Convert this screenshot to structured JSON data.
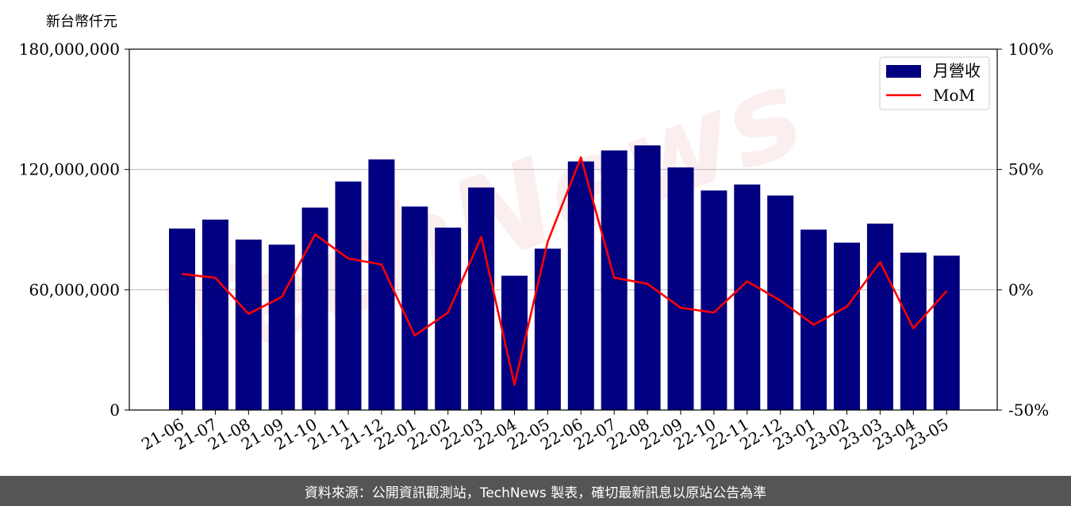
{
  "chart_data": {
    "type": "bar",
    "unit_label": "新台幣仟元",
    "categories": [
      "21-06",
      "21-07",
      "21-08",
      "21-09",
      "21-10",
      "21-11",
      "21-12",
      "22-01",
      "22-02",
      "22-03",
      "22-04",
      "22-05",
      "22-06",
      "22-07",
      "22-08",
      "22-09",
      "22-10",
      "22-11",
      "22-12",
      "23-01",
      "23-02",
      "23-03",
      "23-04",
      "23-05"
    ],
    "series": [
      {
        "name": "月營收",
        "kind": "bar",
        "axis": "left",
        "color": "#000080",
        "values": [
          90500000,
          95000000,
          85000000,
          82500000,
          101000000,
          114000000,
          125000000,
          101500000,
          91000000,
          111000000,
          67000000,
          80500000,
          124000000,
          129500000,
          132000000,
          121000000,
          109500000,
          112500000,
          107000000,
          90000000,
          83500000,
          93000000,
          78500000,
          77000000
        ]
      },
      {
        "name": "MoM",
        "kind": "line",
        "axis": "right",
        "color": "#ff0000",
        "values": [
          6.5,
          5,
          -10,
          -3,
          23,
          13,
          10.5,
          -19,
          -9.5,
          22,
          -39.5,
          20,
          55,
          5,
          2.5,
          -7.5,
          -9.5,
          3.5,
          -4.5,
          -14.5,
          -7,
          11.5,
          -16,
          -0.5
        ]
      }
    ],
    "y_left": {
      "range": [
        0,
        180000000
      ],
      "ticks": [
        "0",
        "60,000,000",
        "120,000,000",
        "180,000,000"
      ],
      "tick_values": [
        0,
        60000000,
        120000000,
        180000000
      ]
    },
    "y_right": {
      "range": [
        -50,
        100
      ],
      "ticks": [
        "-50%",
        "0%",
        "50%",
        "100%"
      ],
      "tick_values": [
        -50,
        0,
        50,
        100
      ]
    },
    "grid": true,
    "legend": "top-right"
  },
  "watermark": "TechNews",
  "footer": {
    "text": "資料來源：公開資訊觀測站，TechNews 製表，確切最新訊息以原站公告為準"
  }
}
